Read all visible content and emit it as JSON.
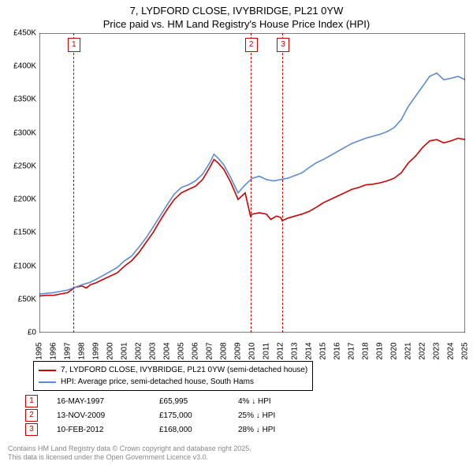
{
  "title": {
    "line1": "7, LYDFORD CLOSE, IVYBRIDGE, PL21 0YW",
    "line2": "Price paid vs. HM Land Registry's House Price Index (HPI)"
  },
  "chart": {
    "type": "line",
    "background_color": "#ffffff",
    "grid_color": "#888888",
    "x": {
      "min": 1995,
      "max": 2025,
      "tick_step": 1
    },
    "y": {
      "min": 0,
      "max": 450000,
      "tick_step": 50000,
      "tick_prefix": "£",
      "tick_suffix": "K",
      "tick_divide": 1000
    },
    "series": [
      {
        "name": "7, LYDFORD CLOSE, IVYBRIDGE, PL21 0YW (semi-detached house)",
        "color": "#cc0000",
        "width": 1.6,
        "points": [
          [
            1995.0,
            55000
          ],
          [
            1995.5,
            56000
          ],
          [
            1996.0,
            56000
          ],
          [
            1996.5,
            58000
          ],
          [
            1997.0,
            60000
          ],
          [
            1997.38,
            65995
          ],
          [
            1997.5,
            68000
          ],
          [
            1998.0,
            70000
          ],
          [
            1998.3,
            67000
          ],
          [
            1998.6,
            72000
          ],
          [
            1999.0,
            75000
          ],
          [
            1999.5,
            80000
          ],
          [
            2000.0,
            85000
          ],
          [
            2000.5,
            90000
          ],
          [
            2001.0,
            100000
          ],
          [
            2001.5,
            108000
          ],
          [
            2002.0,
            120000
          ],
          [
            2002.5,
            135000
          ],
          [
            2003.0,
            150000
          ],
          [
            2003.5,
            168000
          ],
          [
            2004.0,
            185000
          ],
          [
            2004.5,
            200000
          ],
          [
            2005.0,
            210000
          ],
          [
            2005.5,
            215000
          ],
          [
            2006.0,
            220000
          ],
          [
            2006.5,
            230000
          ],
          [
            2007.0,
            248000
          ],
          [
            2007.3,
            260000
          ],
          [
            2007.6,
            255000
          ],
          [
            2008.0,
            245000
          ],
          [
            2008.5,
            225000
          ],
          [
            2009.0,
            200000
          ],
          [
            2009.5,
            210000
          ],
          [
            2009.87,
            175000
          ],
          [
            2010.0,
            178000
          ],
          [
            2010.5,
            180000
          ],
          [
            2011.0,
            178000
          ],
          [
            2011.3,
            170000
          ],
          [
            2011.7,
            175000
          ],
          [
            2012.0,
            173000
          ],
          [
            2012.11,
            168000
          ],
          [
            2012.5,
            172000
          ],
          [
            2013.0,
            175000
          ],
          [
            2013.5,
            178000
          ],
          [
            2014.0,
            182000
          ],
          [
            2014.5,
            188000
          ],
          [
            2015.0,
            195000
          ],
          [
            2015.5,
            200000
          ],
          [
            2016.0,
            205000
          ],
          [
            2016.5,
            210000
          ],
          [
            2017.0,
            215000
          ],
          [
            2017.5,
            218000
          ],
          [
            2018.0,
            222000
          ],
          [
            2018.5,
            223000
          ],
          [
            2019.0,
            225000
          ],
          [
            2019.5,
            228000
          ],
          [
            2020.0,
            232000
          ],
          [
            2020.5,
            240000
          ],
          [
            2021.0,
            255000
          ],
          [
            2021.5,
            265000
          ],
          [
            2022.0,
            278000
          ],
          [
            2022.5,
            288000
          ],
          [
            2023.0,
            290000
          ],
          [
            2023.5,
            285000
          ],
          [
            2024.0,
            288000
          ],
          [
            2024.5,
            292000
          ],
          [
            2025.0,
            290000
          ]
        ]
      },
      {
        "name": "HPI: Average price, semi-detached house, South Hams",
        "color": "#5b8bd4",
        "width": 1.6,
        "points": [
          [
            1995.0,
            58000
          ],
          [
            1995.5,
            59000
          ],
          [
            1996.0,
            60000
          ],
          [
            1996.5,
            62000
          ],
          [
            1997.0,
            64000
          ],
          [
            1997.5,
            68000
          ],
          [
            1998.0,
            72000
          ],
          [
            1998.5,
            75000
          ],
          [
            1999.0,
            80000
          ],
          [
            1999.5,
            86000
          ],
          [
            2000.0,
            92000
          ],
          [
            2000.5,
            98000
          ],
          [
            2001.0,
            108000
          ],
          [
            2001.5,
            115000
          ],
          [
            2002.0,
            128000
          ],
          [
            2002.5,
            142000
          ],
          [
            2003.0,
            158000
          ],
          [
            2003.5,
            175000
          ],
          [
            2004.0,
            192000
          ],
          [
            2004.5,
            208000
          ],
          [
            2005.0,
            218000
          ],
          [
            2005.5,
            222000
          ],
          [
            2006.0,
            228000
          ],
          [
            2006.5,
            238000
          ],
          [
            2007.0,
            255000
          ],
          [
            2007.3,
            268000
          ],
          [
            2007.6,
            262000
          ],
          [
            2008.0,
            252000
          ],
          [
            2008.5,
            232000
          ],
          [
            2009.0,
            210000
          ],
          [
            2009.5,
            222000
          ],
          [
            2010.0,
            232000
          ],
          [
            2010.5,
            235000
          ],
          [
            2011.0,
            230000
          ],
          [
            2011.5,
            228000
          ],
          [
            2012.0,
            230000
          ],
          [
            2012.5,
            232000
          ],
          [
            2013.0,
            236000
          ],
          [
            2013.5,
            240000
          ],
          [
            2014.0,
            248000
          ],
          [
            2014.5,
            255000
          ],
          [
            2015.0,
            260000
          ],
          [
            2015.5,
            266000
          ],
          [
            2016.0,
            272000
          ],
          [
            2016.5,
            278000
          ],
          [
            2017.0,
            284000
          ],
          [
            2017.5,
            288000
          ],
          [
            2018.0,
            292000
          ],
          [
            2018.5,
            295000
          ],
          [
            2019.0,
            298000
          ],
          [
            2019.5,
            302000
          ],
          [
            2020.0,
            308000
          ],
          [
            2020.5,
            320000
          ],
          [
            2021.0,
            340000
          ],
          [
            2021.5,
            355000
          ],
          [
            2022.0,
            370000
          ],
          [
            2022.5,
            385000
          ],
          [
            2023.0,
            390000
          ],
          [
            2023.5,
            380000
          ],
          [
            2024.0,
            382000
          ],
          [
            2024.5,
            385000
          ],
          [
            2025.0,
            380000
          ]
        ]
      }
    ],
    "sales_markers": [
      {
        "n": "1",
        "x": 1997.38,
        "date": "16-MAY-1997",
        "price": "£65,995",
        "diff": "4% ↓ HPI"
      },
      {
        "n": "2",
        "x": 2009.87,
        "date": "13-NOV-2009",
        "price": "£175,000",
        "diff": "25% ↓ HPI"
      },
      {
        "n": "3",
        "x": 2012.11,
        "date": "10-FEB-2012",
        "price": "£168,000",
        "diff": "28% ↓ HPI"
      }
    ]
  },
  "footer": {
    "line1": "Contains HM Land Registry data © Crown copyright and database right 2025.",
    "line2": "This data is licensed under the Open Government Licence v3.0."
  }
}
